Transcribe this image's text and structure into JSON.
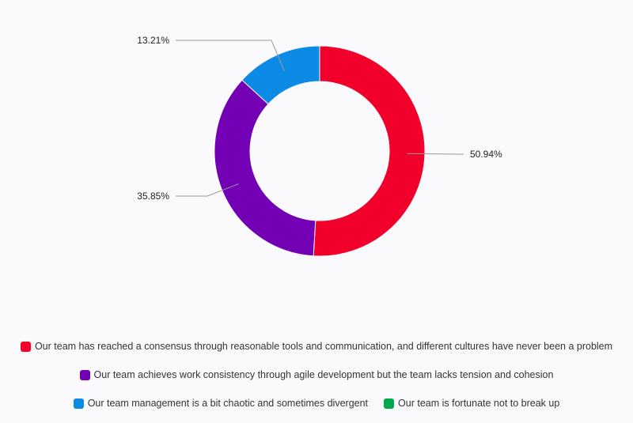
{
  "chart_data": {
    "type": "pie",
    "donut": true,
    "categories": [
      "Our team has reached a consensus through reasonable tools and communication, and different cultures have never been a problem",
      "Our team achieves work consistency through agile development but the team lacks tension and cohesion",
      "Our team management is a bit chaotic and sometimes divergent",
      "Our team is fortunate not to break up"
    ],
    "values": [
      50.94,
      35.85,
      13.21,
      0
    ],
    "labels": [
      "50.94%",
      "35.85%",
      "13.21%",
      ""
    ],
    "colors": [
      "#f0002a",
      "#7300b4",
      "#0b8ae6",
      "#00a84f"
    ],
    "legend_position": "bottom"
  }
}
